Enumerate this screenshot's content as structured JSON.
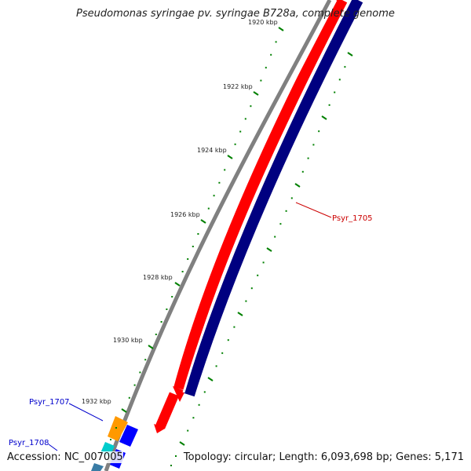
{
  "title": "Pseudomonas syringae pv. syringae B728a, complete genome",
  "footer": {
    "accession": "Accession: NC_007005",
    "summary": "Topology: circular; Length: 6,093,698 bp; Genes: 5,171"
  },
  "colors": {
    "backbone": "#808080",
    "forward_strand": "#ff0000",
    "reverse_strand": "#000080",
    "ticks": "#008000",
    "label_red": "#cc0000",
    "label_blue": "#0000cc",
    "orange_gene": "#ff9900",
    "blue_gene": "#0000ff",
    "cyan_gene": "#00cccc"
  },
  "tick_labels": [
    "1920 kbp",
    "1922 kbp",
    "1924 kbp",
    "1926 kbp",
    "1928 kbp",
    "1930 kbp",
    "1932 kbp"
  ],
  "gene_labels": [
    "Psyr_1705",
    "Psyr_1707",
    "Psyr_1708"
  ]
}
